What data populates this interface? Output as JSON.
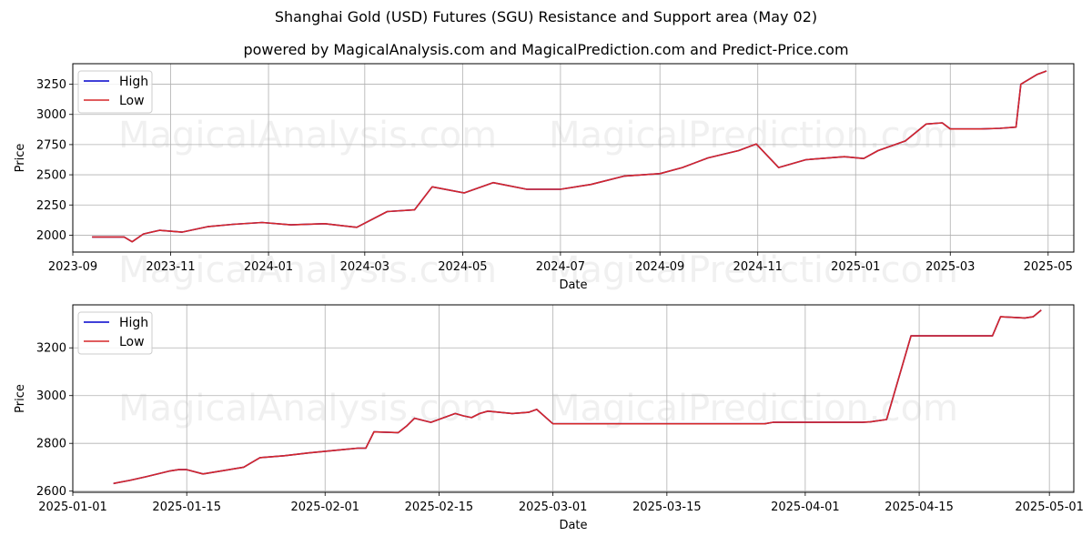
{
  "header": {
    "title": "Shanghai Gold (USD) Futures (SGU) Resistance and Support area (May 02)",
    "subtitle": "powered by MagicalAnalysis.com and MagicalPrediction.com and Predict-Price.com"
  },
  "watermarks": [
    "MagicalAnalysis.com",
    "MagicalPrediction.com"
  ],
  "colors": {
    "high": "#0000cc",
    "low": "#d62728",
    "grid": "#b0b0b0"
  },
  "chart_data": [
    {
      "type": "line",
      "xlabel": "Date",
      "ylabel": "Price",
      "legend": "top-left",
      "grid": true,
      "x_range": [
        "2023-09-01",
        "2025-05-17"
      ],
      "ylim": [
        1860,
        3420
      ],
      "x_ticks": [
        "2023-09",
        "2023-11",
        "2024-01",
        "2024-03",
        "2024-05",
        "2024-07",
        "2024-09",
        "2024-11",
        "2025-01",
        "2025-03",
        "2025-05"
      ],
      "y_ticks": [
        2000,
        2250,
        2500,
        2750,
        3000,
        3250
      ],
      "series": [
        {
          "name": "High",
          "x": [
            "2023-09-13",
            "2023-10-03",
            "2023-10-08",
            "2023-10-15",
            "2023-10-25",
            "2023-11-08",
            "2023-11-24",
            "2023-12-10",
            "2023-12-28",
            "2024-01-15",
            "2024-02-05",
            "2024-02-25",
            "2024-03-15",
            "2024-04-01",
            "2024-04-12",
            "2024-05-02",
            "2024-05-20",
            "2024-06-10",
            "2024-07-01",
            "2024-07-20",
            "2024-08-10",
            "2024-09-01",
            "2024-09-15",
            "2024-10-01",
            "2024-10-20",
            "2024-10-31",
            "2024-11-14",
            "2024-12-01",
            "2024-12-25",
            "2025-01-06",
            "2025-01-15",
            "2025-02-01",
            "2025-02-14",
            "2025-02-24",
            "2025-03-01",
            "2025-03-20",
            "2025-04-01",
            "2025-04-11",
            "2025-04-14",
            "2025-04-24",
            "2025-04-30"
          ],
          "values": [
            1985,
            1985,
            1945,
            2010,
            2040,
            2025,
            2070,
            2090,
            2105,
            2085,
            2095,
            2065,
            2195,
            2210,
            2400,
            2350,
            2435,
            2380,
            2380,
            2420,
            2490,
            2510,
            2560,
            2640,
            2700,
            2755,
            2560,
            2625,
            2650,
            2635,
            2700,
            2780,
            2920,
            2930,
            2880,
            2880,
            2885,
            2895,
            3250,
            3330,
            3360
          ]
        },
        {
          "name": "Low",
          "x": [
            "2023-09-13",
            "2023-10-03",
            "2023-10-08",
            "2023-10-15",
            "2023-10-25",
            "2023-11-08",
            "2023-11-24",
            "2023-12-10",
            "2023-12-28",
            "2024-01-15",
            "2024-02-05",
            "2024-02-25",
            "2024-03-15",
            "2024-04-01",
            "2024-04-12",
            "2024-05-02",
            "2024-05-20",
            "2024-06-10",
            "2024-07-01",
            "2024-07-20",
            "2024-08-10",
            "2024-09-01",
            "2024-09-15",
            "2024-10-01",
            "2024-10-20",
            "2024-10-31",
            "2024-11-14",
            "2024-12-01",
            "2024-12-25",
            "2025-01-06",
            "2025-01-15",
            "2025-02-01",
            "2025-02-14",
            "2025-02-24",
            "2025-03-01",
            "2025-03-20",
            "2025-04-01",
            "2025-04-11",
            "2025-04-14",
            "2025-04-24",
            "2025-04-30"
          ],
          "values": [
            1985,
            1985,
            1945,
            2010,
            2040,
            2025,
            2070,
            2090,
            2105,
            2085,
            2095,
            2065,
            2195,
            2210,
            2400,
            2350,
            2435,
            2380,
            2380,
            2420,
            2490,
            2510,
            2560,
            2640,
            2700,
            2755,
            2560,
            2625,
            2650,
            2635,
            2700,
            2780,
            2920,
            2930,
            2880,
            2880,
            2885,
            2895,
            3250,
            3330,
            3360
          ]
        }
      ]
    },
    {
      "type": "line",
      "xlabel": "Date",
      "ylabel": "Price",
      "legend": "top-left",
      "grid": true,
      "x_range": [
        "2025-01-01",
        "2025-05-04"
      ],
      "ylim": [
        2595,
        3380
      ],
      "x_ticks": [
        "2025-01-01",
        "2025-01-15",
        "2025-02-01",
        "2025-02-15",
        "2025-03-01",
        "2025-03-15",
        "2025-04-01",
        "2025-04-15",
        "2025-05-01"
      ],
      "y_ticks": [
        2600,
        2800,
        3000,
        3200
      ],
      "series": [
        {
          "name": "High",
          "x": [
            "2025-01-06",
            "2025-01-08",
            "2025-01-10",
            "2025-01-13",
            "2025-01-14",
            "2025-01-15",
            "2025-01-17",
            "2025-01-22",
            "2025-01-24",
            "2025-01-27",
            "2025-01-30",
            "2025-02-05",
            "2025-02-06",
            "2025-02-07",
            "2025-02-10",
            "2025-02-11",
            "2025-02-12",
            "2025-02-14",
            "2025-02-17",
            "2025-02-18",
            "2025-02-19",
            "2025-02-20",
            "2025-02-21",
            "2025-02-24",
            "2025-02-26",
            "2025-02-27",
            "2025-03-01",
            "2025-03-27",
            "2025-03-28",
            "2025-04-08",
            "2025-04-09",
            "2025-04-11",
            "2025-04-14",
            "2025-04-24",
            "2025-04-25",
            "2025-04-28",
            "2025-04-29",
            "2025-04-30"
          ],
          "values": [
            2632,
            2645,
            2660,
            2685,
            2690,
            2690,
            2672,
            2700,
            2740,
            2748,
            2760,
            2780,
            2780,
            2848,
            2845,
            2872,
            2905,
            2888,
            2925,
            2915,
            2908,
            2925,
            2935,
            2925,
            2930,
            2942,
            2882,
            2882,
            2888,
            2888,
            2890,
            2900,
            3250,
            3250,
            3330,
            3325,
            3330,
            3358
          ]
        },
        {
          "name": "Low",
          "x": [
            "2025-01-06",
            "2025-01-08",
            "2025-01-10",
            "2025-01-13",
            "2025-01-14",
            "2025-01-15",
            "2025-01-17",
            "2025-01-22",
            "2025-01-24",
            "2025-01-27",
            "2025-01-30",
            "2025-02-05",
            "2025-02-06",
            "2025-02-07",
            "2025-02-10",
            "2025-02-11",
            "2025-02-12",
            "2025-02-14",
            "2025-02-17",
            "2025-02-18",
            "2025-02-19",
            "2025-02-20",
            "2025-02-21",
            "2025-02-24",
            "2025-02-26",
            "2025-02-27",
            "2025-03-01",
            "2025-03-27",
            "2025-03-28",
            "2025-04-08",
            "2025-04-09",
            "2025-04-11",
            "2025-04-14",
            "2025-04-24",
            "2025-04-25",
            "2025-04-28",
            "2025-04-29",
            "2025-04-30"
          ],
          "values": [
            2632,
            2645,
            2660,
            2685,
            2690,
            2690,
            2672,
            2700,
            2740,
            2748,
            2760,
            2780,
            2780,
            2848,
            2845,
            2872,
            2905,
            2888,
            2925,
            2915,
            2908,
            2925,
            2935,
            2925,
            2930,
            2942,
            2882,
            2882,
            2888,
            2888,
            2890,
            2900,
            3250,
            3250,
            3330,
            3325,
            3330,
            3358
          ]
        }
      ]
    }
  ]
}
